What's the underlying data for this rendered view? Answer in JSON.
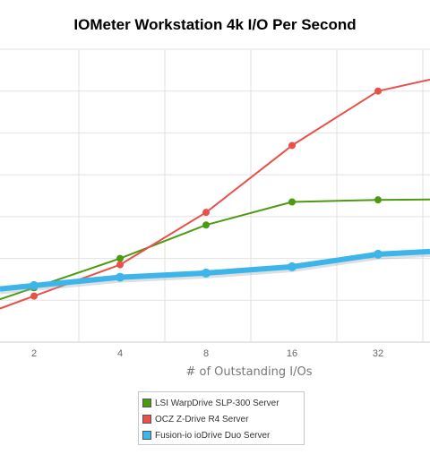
{
  "chart_data": {
    "type": "line",
    "title": "IOMeter Workstation 4k I/O Per Second",
    "xlabel": "# of Outstanding I/Os",
    "ylabel": "",
    "categories": [
      "2",
      "4",
      "8",
      "16",
      "32"
    ],
    "grid": true,
    "legend_position": "bottom",
    "series": [
      {
        "name": "LSI WarpDrive SLP-300 Server",
        "color": "#4c9a12",
        "values": [
          1.3,
          2.0,
          2.8,
          3.35,
          3.4
        ]
      },
      {
        "name": "OCZ Z-Drive R4 Server",
        "color": "#e8504a",
        "values": [
          1.1,
          1.85,
          3.1,
          4.7,
          6.0
        ]
      },
      {
        "name": "Fusion-io ioDrive Duo Server",
        "color": "#3db5ea",
        "values": [
          1.35,
          1.55,
          1.65,
          1.8,
          2.1
        ]
      }
    ]
  }
}
